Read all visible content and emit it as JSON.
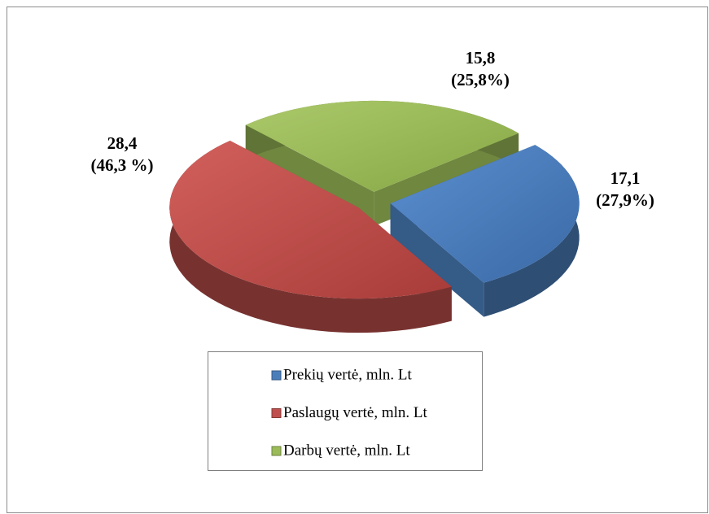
{
  "chart_data": {
    "type": "pie3d",
    "categories": [
      "Prekių vertė, mln. Lt",
      "Paslaugų vertė, mln. Lt",
      "Darbų vertė, mln. Lt"
    ],
    "values": [
      17.1,
      28.4,
      15.8
    ],
    "value_labels": [
      "17,1",
      "28,4",
      "15,8"
    ],
    "percent_labels": [
      "(27,9%)",
      "(46,3 %)",
      "(25,8%)"
    ],
    "colors": [
      "#4a7ebb",
      "#c0504d",
      "#9bbb59"
    ],
    "legend": "bottom"
  }
}
